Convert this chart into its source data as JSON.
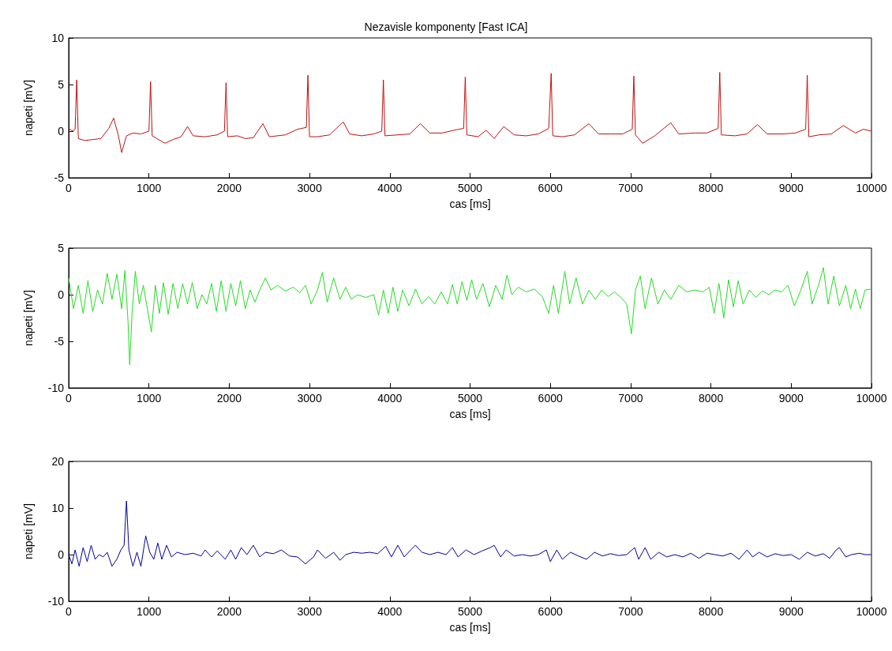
{
  "chart_data": [
    {
      "type": "line",
      "title": "Nezavisle komponenty [Fast ICA]",
      "xlabel": "cas [ms]",
      "ylabel": "napeti [mV]",
      "xlim": [
        0,
        10000
      ],
      "xticks": [
        0,
        1000,
        2000,
        3000,
        4000,
        5000,
        6000,
        7000,
        8000,
        9000,
        10000
      ],
      "ylim": [
        -5,
        10
      ],
      "yticks": [
        -5,
        0,
        5,
        10
      ],
      "grid": false,
      "marker": "none",
      "line_style": "solid",
      "series": [
        {
          "color": "#c01010",
          "x": [
            0,
            50,
            80,
            100,
            120,
            200,
            300,
            400,
            500,
            560,
            620,
            660,
            720,
            800,
            900,
            1000,
            1020,
            1040,
            1100,
            1200,
            1300,
            1400,
            1480,
            1550,
            1700,
            1850,
            1940,
            1960,
            1980,
            2100,
            2200,
            2300,
            2420,
            2500,
            2700,
            2850,
            2960,
            2980,
            3000,
            3100,
            3250,
            3420,
            3500,
            3650,
            3800,
            3900,
            3920,
            3940,
            4100,
            4250,
            4380,
            4500,
            4650,
            4800,
            4920,
            4940,
            4960,
            5100,
            5200,
            5300,
            5420,
            5550,
            5700,
            5850,
            5980,
            6010,
            6030,
            6150,
            6300,
            6480,
            6600,
            6750,
            6900,
            7020,
            7040,
            7060,
            7150,
            7300,
            7500,
            7600,
            7800,
            7950,
            8090,
            8110,
            8130,
            8300,
            8450,
            8580,
            8700,
            8900,
            9050,
            9180,
            9200,
            9220,
            9350,
            9500,
            9650,
            9800,
            9900,
            10000
          ],
          "values": [
            0.3,
            0,
            0.2,
            5.5,
            -0.8,
            -1,
            -0.9,
            -0.8,
            0.3,
            1.4,
            -0.5,
            -2.3,
            -0.5,
            -0.2,
            -0.3,
            0,
            5.3,
            -0.5,
            -0.8,
            -1.3,
            -0.9,
            -0.6,
            0.5,
            -0.5,
            -0.6,
            -0.4,
            0,
            5.2,
            -0.6,
            -0.5,
            -0.8,
            -0.7,
            0.8,
            -0.6,
            -0.4,
            0.2,
            0.4,
            6,
            -0.6,
            -0.6,
            -0.4,
            1,
            -0.3,
            -0.5,
            -0.3,
            0,
            5.5,
            -0.5,
            -0.4,
            -0.3,
            0.8,
            -0.2,
            -0.2,
            0.1,
            0.3,
            5.8,
            -0.4,
            -0.6,
            0.1,
            -0.8,
            0.5,
            -0.4,
            -0.5,
            -0.3,
            0.3,
            6.2,
            -0.5,
            -0.6,
            -0.4,
            0.8,
            -0.3,
            -0.3,
            -0.3,
            0.2,
            5.9,
            -0.4,
            -1.3,
            -0.5,
            0.9,
            -0.3,
            -0.2,
            -0.2,
            0.3,
            6.3,
            -0.4,
            -0.5,
            -0.3,
            0.7,
            -0.3,
            -0.3,
            -0.2,
            0.2,
            6,
            -0.6,
            -0.4,
            -0.3,
            0.6,
            -0.2,
            0.2,
            0
          ]
        }
      ]
    },
    {
      "type": "line",
      "xlabel": "cas [ms]",
      "ylabel": "napeti [mV]",
      "xlim": [
        0,
        10000
      ],
      "xticks": [
        0,
        1000,
        2000,
        3000,
        4000,
        5000,
        6000,
        7000,
        8000,
        9000,
        10000
      ],
      "ylim": [
        -10,
        5
      ],
      "yticks": [
        -10,
        -5,
        0,
        5
      ],
      "grid": false,
      "marker": "none",
      "line_style": "solid",
      "series": [
        {
          "color": "#22dd22",
          "x": [
            0,
            60,
            120,
            180,
            240,
            300,
            360,
            420,
            480,
            540,
            600,
            660,
            700,
            740,
            760,
            790,
            830,
            880,
            930,
            980,
            1030,
            1080,
            1130,
            1180,
            1240,
            1300,
            1360,
            1420,
            1480,
            1540,
            1600,
            1660,
            1720,
            1780,
            1840,
            1900,
            1960,
            2020,
            2080,
            2140,
            2200,
            2260,
            2320,
            2380,
            2450,
            2520,
            2600,
            2700,
            2800,
            2880,
            2950,
            3020,
            3100,
            3160,
            3220,
            3300,
            3380,
            3450,
            3520,
            3600,
            3700,
            3800,
            3860,
            3920,
            3980,
            4040,
            4100,
            4160,
            4240,
            4320,
            4400,
            4480,
            4560,
            4640,
            4720,
            4780,
            4840,
            4900,
            4960,
            5020,
            5080,
            5160,
            5240,
            5320,
            5400,
            5460,
            5520,
            5600,
            5700,
            5800,
            5900,
            5980,
            6040,
            6100,
            6180,
            6240,
            6320,
            6400,
            6480,
            6560,
            6640,
            6720,
            6800,
            6880,
            6950,
            7010,
            7060,
            7120,
            7180,
            7260,
            7340,
            7420,
            7500,
            7600,
            7700,
            7800,
            7900,
            7980,
            8040,
            8100,
            8160,
            8220,
            8280,
            8340,
            8400,
            8480,
            8560,
            8640,
            8720,
            8800,
            8880,
            8960,
            9040,
            9120,
            9200,
            9260,
            9340,
            9400,
            9460,
            9530,
            9600,
            9680,
            9740,
            9800,
            9860,
            9920,
            10000
          ],
          "values": [
            1.8,
            -1.5,
            1,
            -2,
            1.5,
            -1.8,
            0.5,
            -1,
            2.3,
            -0.5,
            2.2,
            -1.5,
            2.6,
            -3,
            -7.5,
            -2,
            2.5,
            -1,
            1,
            -1.5,
            -4,
            1,
            -2,
            1.3,
            -2.1,
            1.2,
            -1.5,
            1.2,
            -1,
            1.3,
            -1.5,
            0,
            -1,
            1.2,
            -1.8,
            1.5,
            -1.8,
            1.2,
            -1.2,
            1.5,
            -1.5,
            0.5,
            -0.8,
            0.5,
            1.8,
            0.5,
            1,
            0.4,
            0.8,
            0.2,
            1,
            -1,
            0.5,
            2.4,
            -0.8,
            1.8,
            -0.5,
            0.8,
            -0.5,
            0,
            -0.3,
            0,
            -2.2,
            0.5,
            -2,
            0.8,
            -1.8,
            0.5,
            -1.2,
            0.6,
            -1,
            -0.2,
            -1,
            0.3,
            -1,
            1.1,
            -1,
            1.4,
            -0.6,
            1.6,
            -0.5,
            1.2,
            -1.3,
            1,
            -0.5,
            2.1,
            0,
            0.8,
            0.3,
            0.6,
            -0.2,
            -2,
            1,
            -2,
            2.5,
            -1,
            1.8,
            -1,
            0.5,
            -0.5,
            0.5,
            -0.2,
            0.3,
            -0.3,
            -1,
            -4.2,
            0.5,
            2,
            -1.5,
            1.8,
            -1,
            0.5,
            -0.5,
            1,
            0.3,
            0.5,
            0.3,
            0.8,
            -2,
            1.2,
            -2.5,
            1.6,
            -1.3,
            1.5,
            -1,
            0.5,
            -0.3,
            0.4,
            0,
            0.5,
            0.3,
            1,
            -1.2,
            0.5,
            2.5,
            -1,
            1,
            2.9,
            -1,
            2,
            -1.2,
            1,
            -1.5,
            0.6,
            -1.5,
            0.5,
            0.6
          ]
        }
      ]
    },
    {
      "type": "line",
      "xlabel": "cas [ms]",
      "ylabel": "napeti [mV]",
      "xlim": [
        0,
        10000
      ],
      "xticks": [
        0,
        1000,
        2000,
        3000,
        4000,
        5000,
        6000,
        7000,
        8000,
        9000,
        10000
      ],
      "ylim": [
        -10,
        20
      ],
      "yticks": [
        -10,
        0,
        10,
        20
      ],
      "grid": false,
      "marker": "none",
      "line_style": "solid",
      "series": [
        {
          "color": "#000099",
          "x": [
            0,
            40,
            80,
            130,
            180,
            230,
            280,
            330,
            380,
            430,
            480,
            540,
            600,
            650,
            690,
            720,
            750,
            800,
            850,
            900,
            960,
            1010,
            1060,
            1110,
            1160,
            1220,
            1280,
            1350,
            1450,
            1550,
            1650,
            1700,
            1780,
            1850,
            1950,
            2020,
            2080,
            2150,
            2220,
            2300,
            2380,
            2450,
            2550,
            2650,
            2750,
            2850,
            2950,
            3050,
            3100,
            3200,
            3300,
            3380,
            3450,
            3550,
            3650,
            3750,
            3850,
            3950,
            4020,
            4100,
            4180,
            4260,
            4320,
            4400,
            4500,
            4600,
            4700,
            4780,
            4850,
            4950,
            5050,
            5150,
            5250,
            5300,
            5380,
            5450,
            5550,
            5650,
            5750,
            5850,
            5950,
            6000,
            6080,
            6150,
            6250,
            6350,
            6450,
            6550,
            6650,
            6750,
            6850,
            6950,
            7050,
            7100,
            7180,
            7250,
            7350,
            7450,
            7550,
            7650,
            7750,
            7850,
            7950,
            8050,
            8150,
            8250,
            8350,
            8450,
            8520,
            8600,
            8700,
            8800,
            8900,
            9000,
            9100,
            9200,
            9300,
            9400,
            9480,
            9560,
            9600,
            9680,
            9750,
            9850,
            9920,
            10000
          ],
          "values": [
            0,
            -2,
            1,
            -2.5,
            1.5,
            -1.5,
            2,
            -1,
            0,
            -0.5,
            0.5,
            -2.5,
            -1,
            1,
            2,
            11.5,
            1,
            -2.5,
            0.5,
            -2.5,
            4,
            0.5,
            -1,
            2.5,
            -1,
            2,
            -0.5,
            0.5,
            0,
            0.3,
            -0.3,
            1,
            -0.5,
            0.8,
            -1,
            1,
            -1,
            1.5,
            0,
            2,
            -0.5,
            0.5,
            0.2,
            1,
            -0.3,
            -0.5,
            -2,
            -0.5,
            1,
            -0.8,
            0.5,
            -1.2,
            0,
            0.5,
            0.3,
            0.5,
            0.2,
            1.8,
            -0.5,
            2,
            -0.5,
            1,
            2,
            0.5,
            0,
            0.5,
            0,
            1.5,
            -0.5,
            1,
            0,
            0.8,
            1.5,
            2,
            -0.5,
            1,
            -0.3,
            0,
            -0.3,
            0,
            1,
            -1.5,
            1,
            -1,
            0.5,
            -0.3,
            -1,
            0.5,
            -0.3,
            0.2,
            -0.2,
            0,
            1.5,
            -1,
            1.5,
            -1,
            0.5,
            -0.5,
            0,
            -0.5,
            0.3,
            -0.8,
            0.3,
            0,
            -0.3,
            0.3,
            -1,
            1,
            -0.5,
            0.5,
            -0.5,
            0.2,
            -0.2,
            0,
            -1,
            0.5,
            -0.3,
            0.2,
            -0.8,
            1,
            1.5,
            -0.5,
            0,
            0.3,
            0,
            0
          ]
        }
      ]
    }
  ]
}
